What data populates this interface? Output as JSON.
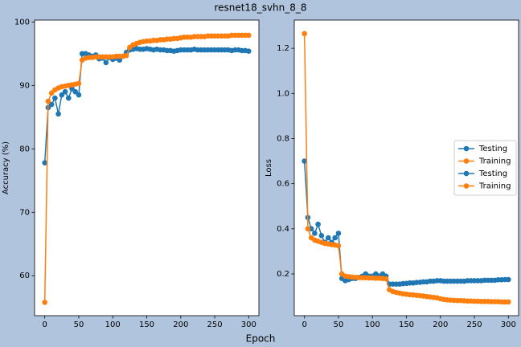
{
  "title": "resnet18_svhn_8_8",
  "xlabel": "Epoch",
  "chart_data": [
    {
      "type": "line",
      "ylabel": "Accuracy (%)",
      "x": [
        0,
        5,
        10,
        15,
        20,
        25,
        30,
        35,
        40,
        45,
        50,
        55,
        60,
        65,
        70,
        75,
        80,
        85,
        90,
        95,
        100,
        105,
        110,
        115,
        120,
        125,
        130,
        135,
        140,
        145,
        150,
        155,
        160,
        165,
        170,
        175,
        180,
        185,
        190,
        195,
        200,
        205,
        210,
        215,
        220,
        225,
        230,
        235,
        240,
        245,
        250,
        255,
        260,
        265,
        270,
        275,
        280,
        285,
        290,
        295,
        300
      ],
      "series": [
        {
          "name": "Testing",
          "color": "#1f77b4",
          "values": [
            77.8,
            86.5,
            87,
            88,
            85.5,
            88.5,
            89,
            88,
            89.5,
            89,
            88.5,
            95,
            95,
            94.8,
            94.6,
            94.8,
            94.2,
            94.3,
            93.6,
            94.4,
            94.1,
            94.3,
            94,
            94.6,
            95.2,
            95.6,
            95.7,
            95.8,
            95.7,
            95.7,
            95.8,
            95.7,
            95.6,
            95.7,
            95.6,
            95.6,
            95.5,
            95.5,
            95.4,
            95.5,
            95.6,
            95.6,
            95.6,
            95.6,
            95.7,
            95.6,
            95.6,
            95.6,
            95.6,
            95.6,
            95.6,
            95.6,
            95.6,
            95.6,
            95.6,
            95.5,
            95.6,
            95.6,
            95.5,
            95.5,
            95.4
          ]
        },
        {
          "name": "Training",
          "color": "#ff7f0e",
          "values": [
            55.8,
            87.5,
            88.8,
            89.3,
            89.6,
            89.8,
            89.9,
            90,
            90.1,
            90.2,
            90.3,
            94,
            94.3,
            94.4,
            94.4,
            94.5,
            94.5,
            94.5,
            94.5,
            94.5,
            94.5,
            94.6,
            94.6,
            94.6,
            94.7,
            96,
            96.4,
            96.6,
            96.8,
            96.9,
            97,
            97,
            97.1,
            97.1,
            97.2,
            97.2,
            97.3,
            97.3,
            97.4,
            97.4,
            97.5,
            97.6,
            97.6,
            97.6,
            97.7,
            97.7,
            97.7,
            97.7,
            97.8,
            97.8,
            97.8,
            97.8,
            97.8,
            97.8,
            97.8,
            97.9,
            97.9,
            97.9,
            97.9,
            97.9,
            97.9
          ]
        }
      ],
      "xlim": [
        -15,
        315
      ],
      "xticks": [
        0,
        50,
        100,
        150,
        200,
        250,
        300
      ],
      "ylim": [
        53.7,
        100.3
      ],
      "yticks": [
        60,
        70,
        80,
        90,
        100
      ]
    },
    {
      "type": "line",
      "ylabel": "Loss",
      "x": [
        0,
        5,
        10,
        15,
        20,
        25,
        30,
        35,
        40,
        45,
        50,
        55,
        60,
        65,
        70,
        75,
        80,
        85,
        90,
        95,
        100,
        105,
        110,
        115,
        120,
        125,
        130,
        135,
        140,
        145,
        150,
        155,
        160,
        165,
        170,
        175,
        180,
        185,
        190,
        195,
        200,
        205,
        210,
        215,
        220,
        225,
        230,
        235,
        240,
        245,
        250,
        255,
        260,
        265,
        270,
        275,
        280,
        285,
        290,
        295,
        300
      ],
      "series": [
        {
          "name": "Testing",
          "color": "#1f77b4",
          "values": [
            0.7,
            0.45,
            0.4,
            0.38,
            0.42,
            0.37,
            0.34,
            0.36,
            0.34,
            0.36,
            0.38,
            0.18,
            0.17,
            0.175,
            0.18,
            0.18,
            0.185,
            0.19,
            0.2,
            0.19,
            0.19,
            0.2,
            0.19,
            0.2,
            0.19,
            0.155,
            0.155,
            0.155,
            0.155,
            0.157,
            0.158,
            0.16,
            0.16,
            0.162,
            0.163,
            0.165,
            0.165,
            0.168,
            0.168,
            0.17,
            0.17,
            0.168,
            0.168,
            0.168,
            0.168,
            0.168,
            0.168,
            0.168,
            0.17,
            0.17,
            0.17,
            0.17,
            0.17,
            0.172,
            0.172,
            0.172,
            0.172,
            0.174,
            0.174,
            0.175,
            0.175
          ]
        },
        {
          "name": "Training",
          "color": "#ff7f0e",
          "values": [
            1.265,
            0.4,
            0.36,
            0.35,
            0.345,
            0.34,
            0.335,
            0.333,
            0.33,
            0.328,
            0.325,
            0.2,
            0.19,
            0.188,
            0.186,
            0.185,
            0.184,
            0.183,
            0.183,
            0.182,
            0.182,
            0.181,
            0.181,
            0.18,
            0.178,
            0.13,
            0.122,
            0.118,
            0.115,
            0.112,
            0.11,
            0.108,
            0.107,
            0.105,
            0.104,
            0.102,
            0.1,
            0.098,
            0.096,
            0.094,
            0.09,
            0.087,
            0.085,
            0.084,
            0.083,
            0.082,
            0.082,
            0.081,
            0.08,
            0.08,
            0.079,
            0.079,
            0.078,
            0.078,
            0.078,
            0.077,
            0.077,
            0.077,
            0.076,
            0.076,
            0.076
          ]
        }
      ],
      "legend_entries": [
        {
          "label": "Testing",
          "color": "#1f77b4"
        },
        {
          "label": "Training",
          "color": "#ff7f0e"
        },
        {
          "label": "Testing",
          "color": "#1f77b4"
        },
        {
          "label": "Training",
          "color": "#ff7f0e"
        }
      ],
      "legend": "center right",
      "xlim": [
        -15,
        315
      ],
      "xticks": [
        0,
        50,
        100,
        150,
        200,
        250,
        300
      ],
      "ylim": [
        0.015,
        1.325
      ],
      "yticks": [
        0.2,
        0.4,
        0.6,
        0.8,
        {
          "value": 1,
          "label": "1.0"
        },
        1.2
      ]
    }
  ]
}
